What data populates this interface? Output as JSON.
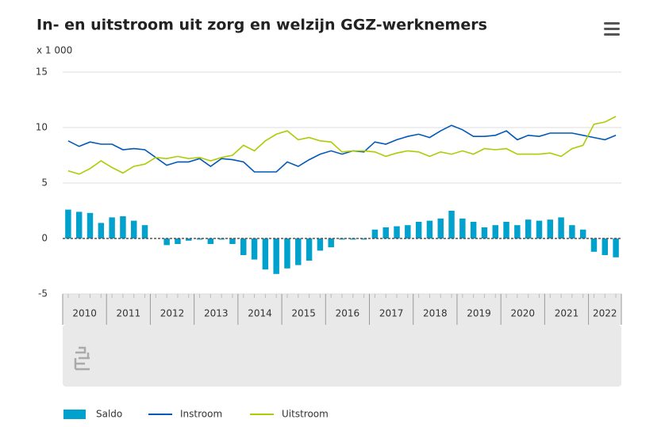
{
  "chart_data": {
    "type": "bar-line",
    "title": "In- en uitstroom uit zorg en welzijn GGZ-werknemers",
    "unit_label": "x 1 000",
    "years": [
      "2010",
      "2011",
      "2012",
      "2013",
      "2014",
      "2015",
      "2016",
      "2017",
      "2018",
      "2019",
      "2020",
      "2021",
      "2022"
    ],
    "ylim": [
      -5,
      15
    ],
    "yticks": [
      -5,
      0,
      5,
      10,
      15
    ],
    "grid": true,
    "series": [
      {
        "name": "Saldo",
        "kind": "bar",
        "color": "#00a1cd",
        "values": [
          2.6,
          2.4,
          2.3,
          1.4,
          1.9,
          2.0,
          1.6,
          1.2,
          0.0,
          -0.6,
          -0.5,
          -0.2,
          -0.1,
          -0.5,
          -0.1,
          -0.5,
          -1.5,
          -1.9,
          -2.8,
          -3.2,
          -2.7,
          -2.4,
          -2.0,
          -1.1,
          -0.8,
          -0.1,
          -0.1,
          -0.1,
          0.8,
          1.0,
          1.1,
          1.2,
          1.5,
          1.6,
          1.8,
          2.5,
          1.8,
          1.5,
          1.0,
          1.2,
          1.5,
          1.2,
          1.7,
          1.6,
          1.7,
          1.9,
          1.2,
          0.8,
          -1.2,
          -1.5,
          -1.7
        ]
      },
      {
        "name": "Instroom",
        "kind": "line",
        "color": "#0058b8",
        "values": [
          8.8,
          8.3,
          8.7,
          8.5,
          8.5,
          8.0,
          8.1,
          8.0,
          7.3,
          6.6,
          6.9,
          6.9,
          7.2,
          6.5,
          7.2,
          7.1,
          6.9,
          6.0,
          6.0,
          6.0,
          6.9,
          6.5,
          7.1,
          7.6,
          7.9,
          7.6,
          7.9,
          7.8,
          8.7,
          8.5,
          8.9,
          9.2,
          9.4,
          9.1,
          9.7,
          10.2,
          9.8,
          9.2,
          9.2,
          9.3,
          9.7,
          8.9,
          9.3,
          9.2,
          9.5,
          9.5,
          9.5,
          9.3,
          9.1,
          8.9,
          9.3
        ]
      },
      {
        "name": "Uitstroom",
        "kind": "line",
        "color": "#afcb05",
        "values": [
          6.1,
          5.8,
          6.3,
          7.0,
          6.4,
          5.9,
          6.5,
          6.7,
          7.3,
          7.2,
          7.4,
          7.2,
          7.3,
          7.0,
          7.3,
          7.5,
          8.4,
          7.9,
          8.8,
          9.4,
          9.7,
          8.9,
          9.1,
          8.8,
          8.7,
          7.8,
          7.9,
          7.9,
          7.8,
          7.4,
          7.7,
          7.9,
          7.8,
          7.4,
          7.8,
          7.6,
          7.9,
          7.6,
          8.1,
          8.0,
          8.1,
          7.6,
          7.6,
          7.6,
          7.7,
          7.4,
          8.1,
          8.4,
          10.3,
          10.5,
          11.0
        ]
      }
    ]
  }
}
